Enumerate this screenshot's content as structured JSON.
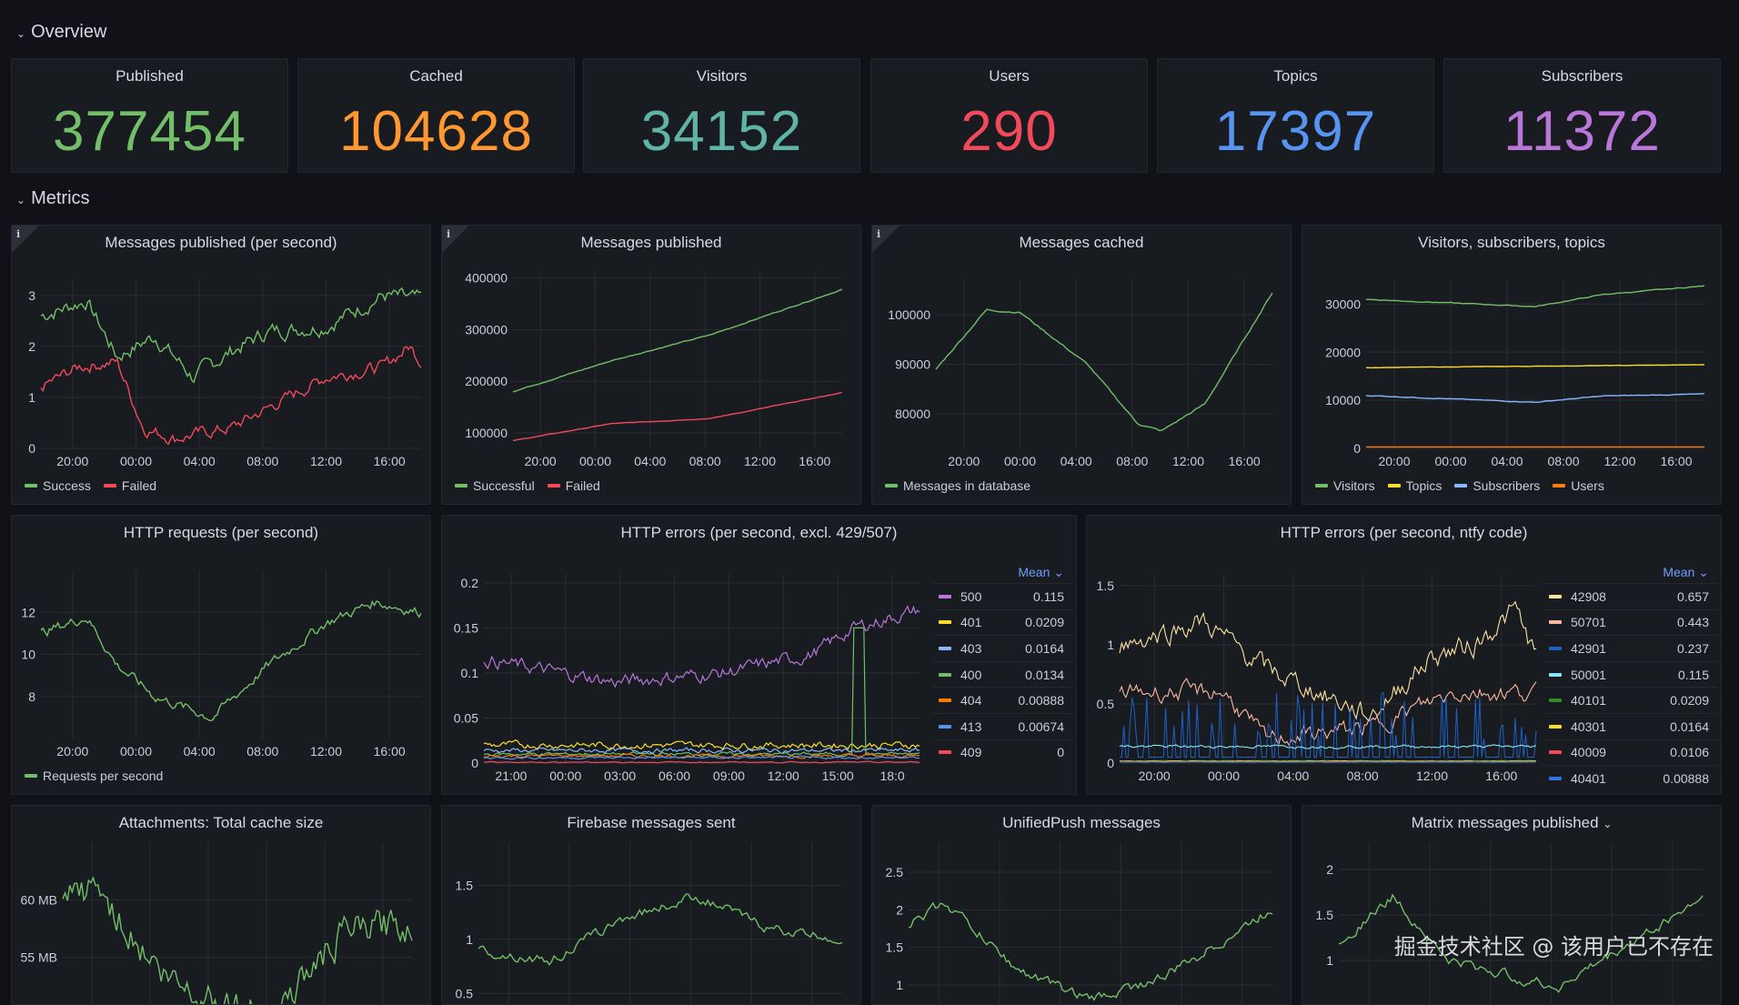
{
  "rows": {
    "overview": "Overview",
    "metrics": "Metrics"
  },
  "stats": [
    {
      "title": "Published",
      "value": "377454",
      "color": "#73bf69"
    },
    {
      "title": "Cached",
      "value": "104628",
      "color": "#ff9830"
    },
    {
      "title": "Visitors",
      "value": "34152",
      "color": "#5fb4a6"
    },
    {
      "title": "Users",
      "value": "290",
      "color": "#f2495c"
    },
    {
      "title": "Topics",
      "value": "17397",
      "color": "#5794f2"
    },
    {
      "title": "Subscribers",
      "value": "11372",
      "color": "#b877d9"
    }
  ],
  "info_icon": "i",
  "charts": {
    "msgs_per_sec": {
      "title": "Messages published (per second)",
      "xticks": [
        "20:00",
        "00:00",
        "04:00",
        "08:00",
        "12:00",
        "16:00"
      ],
      "yticks": [
        "0",
        "1",
        "2",
        "3"
      ],
      "ylim": [
        0,
        3.3
      ],
      "series": [
        {
          "name": "Success",
          "color": "#73bf69"
        },
        {
          "name": "Failed",
          "color": "#f2495c"
        }
      ]
    },
    "msgs_published": {
      "title": "Messages published",
      "xticks": [
        "20:00",
        "00:00",
        "04:00",
        "08:00",
        "12:00",
        "16:00"
      ],
      "yticks": [
        "100000",
        "200000",
        "300000",
        "400000"
      ],
      "ylim": [
        70000,
        410000
      ],
      "series": [
        {
          "name": "Successful",
          "color": "#73bf69"
        },
        {
          "name": "Failed",
          "color": "#f2495c"
        }
      ]
    },
    "msgs_cached": {
      "title": "Messages cached",
      "xticks": [
        "20:00",
        "00:00",
        "04:00",
        "08:00",
        "12:00",
        "16:00"
      ],
      "yticks": [
        "80000",
        "90000",
        "100000"
      ],
      "ylim": [
        73000,
        107000
      ],
      "series": [
        {
          "name": "Messages in database",
          "color": "#73bf69"
        }
      ]
    },
    "visitors": {
      "title": "Visitors, subscribers, topics",
      "xticks": [
        "20:00",
        "00:00",
        "04:00",
        "08:00",
        "12:00",
        "16:00"
      ],
      "yticks": [
        "0",
        "10000",
        "20000",
        "30000"
      ],
      "ylim": [
        0,
        35000
      ],
      "series": [
        {
          "name": "Visitors",
          "color": "#73bf69"
        },
        {
          "name": "Topics",
          "color": "#fade2a"
        },
        {
          "name": "Subscribers",
          "color": "#8ab8ff"
        },
        {
          "name": "Users",
          "color": "#ff7f0e"
        }
      ]
    },
    "http_req": {
      "title": "HTTP requests (per second)",
      "xticks": [
        "20:00",
        "00:00",
        "04:00",
        "08:00",
        "12:00",
        "16:00"
      ],
      "yticks": [
        "8",
        "10",
        "12"
      ],
      "ylim": [
        6,
        14
      ],
      "series": [
        {
          "name": "Requests per second",
          "color": "#73bf69"
        }
      ]
    },
    "http_err": {
      "title": "HTTP errors (per second, excl. 429/507)",
      "xticks": [
        "21:00",
        "00:00",
        "03:00",
        "06:00",
        "09:00",
        "12:00",
        "15:00",
        "18:0"
      ],
      "yticks": [
        "0",
        "0.05",
        "0.1",
        "0.15",
        "0.2"
      ],
      "ylim": [
        0,
        0.21
      ],
      "mean_label": "Mean",
      "table": [
        {
          "name": "500",
          "value": "0.115",
          "color": "#b877d9"
        },
        {
          "name": "401",
          "value": "0.0209",
          "color": "#fade2a"
        },
        {
          "name": "403",
          "value": "0.0164",
          "color": "#8ab8ff"
        },
        {
          "name": "400",
          "value": "0.0134",
          "color": "#73bf69"
        },
        {
          "name": "404",
          "value": "0.00888",
          "color": "#ff780a"
        },
        {
          "name": "413",
          "value": "0.00674",
          "color": "#5794f2"
        },
        {
          "name": "409",
          "value": "0",
          "color": "#f2495c"
        }
      ]
    },
    "http_err_code": {
      "title": "HTTP errors (per second, ntfy code)",
      "xticks": [
        "20:00",
        "00:00",
        "04:00",
        "08:00",
        "12:00",
        "16:00"
      ],
      "yticks": [
        "0",
        "0.5",
        "1",
        "1.5"
      ],
      "ylim": [
        0,
        1.6
      ],
      "mean_label": "Mean",
      "table": [
        {
          "name": "42908",
          "value": "0.657",
          "color": "#fce2a0"
        },
        {
          "name": "50701",
          "value": "0.443",
          "color": "#ffb8a0"
        },
        {
          "name": "42901",
          "value": "0.237",
          "color": "#1f60c4"
        },
        {
          "name": "50001",
          "value": "0.115",
          "color": "#8ae6f5"
        },
        {
          "name": "40101",
          "value": "0.0209",
          "color": "#37872d"
        },
        {
          "name": "40301",
          "value": "0.0164",
          "color": "#fade2a"
        },
        {
          "name": "40009",
          "value": "0.0106",
          "color": "#f2495c"
        },
        {
          "name": "40401",
          "value": "0.00888",
          "color": "#3274d9"
        }
      ]
    },
    "attachments": {
      "title": "Attachments: Total cache size",
      "yticks": [
        "55 MB",
        "60 MB"
      ]
    },
    "firebase": {
      "title": "Firebase messages sent",
      "yticks": [
        "0.5",
        "1",
        "1.5"
      ]
    },
    "unifiedpush": {
      "title": "UnifiedPush messages",
      "yticks": [
        "1",
        "1.5",
        "2",
        "2.5"
      ]
    },
    "matrix": {
      "title": "Matrix messages published",
      "yticks": [
        "1",
        "1.5",
        "2"
      ]
    }
  },
  "watermark": "掘金技术社区 @ 该用户已不存在"
}
